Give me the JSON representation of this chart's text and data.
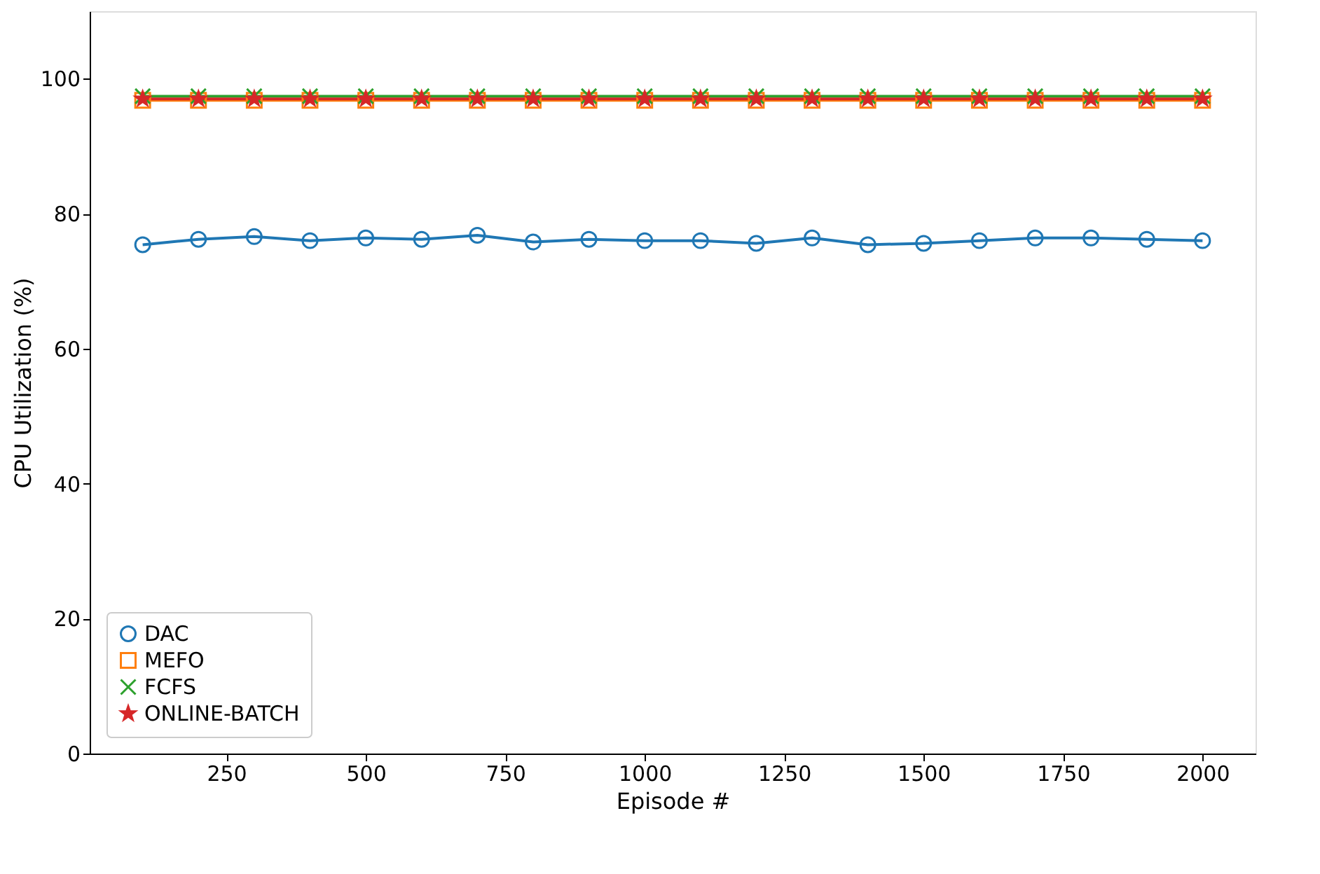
{
  "chart_data": {
    "type": "line",
    "xlabel": "Episode #",
    "ylabel": "CPU Utilization (%)",
    "x": [
      100,
      200,
      300,
      400,
      500,
      600,
      700,
      800,
      900,
      1000,
      1100,
      1200,
      1300,
      1400,
      1500,
      1600,
      1700,
      1800,
      1900,
      2000
    ],
    "series": [
      {
        "name": "DAC",
        "color": "#1f77b4",
        "marker": "circle",
        "values": [
          75.4,
          76.2,
          76.6,
          76.0,
          76.4,
          76.2,
          76.8,
          75.8,
          76.2,
          76.0,
          76.0,
          75.6,
          76.4,
          75.4,
          75.6,
          76.0,
          76.4,
          76.4,
          76.2,
          76.0
        ]
      },
      {
        "name": "MEFO",
        "color": "#ff7f0e",
        "marker": "square",
        "values": [
          96.8,
          96.8,
          96.8,
          96.8,
          96.8,
          96.8,
          96.8,
          96.8,
          96.8,
          96.8,
          96.8,
          96.8,
          96.8,
          96.8,
          96.8,
          96.8,
          96.8,
          96.8,
          96.8,
          96.8
        ]
      },
      {
        "name": "FCFS",
        "color": "#2ca02c",
        "marker": "cross",
        "values": [
          97.4,
          97.4,
          97.4,
          97.4,
          97.4,
          97.4,
          97.4,
          97.4,
          97.4,
          97.4,
          97.4,
          97.4,
          97.4,
          97.4,
          97.4,
          97.4,
          97.4,
          97.4,
          97.4,
          97.4
        ]
      },
      {
        "name": "ONLINE-BATCH",
        "color": "#d62728",
        "marker": "star",
        "values": [
          97.0,
          97.0,
          97.0,
          97.0,
          97.0,
          97.0,
          97.0,
          97.0,
          97.0,
          97.0,
          97.0,
          97.0,
          97.0,
          97.0,
          97.0,
          97.0,
          97.0,
          97.0,
          97.0,
          97.0
        ]
      }
    ],
    "xlim": [
      5,
      2095
    ],
    "xticks": [
      250,
      500,
      750,
      1000,
      1250,
      1500,
      1750,
      2000
    ],
    "ylim": [
      0,
      110
    ],
    "yticks": [
      0,
      20,
      40,
      60,
      80,
      100
    ],
    "grid": false,
    "legend": "bottom left",
    "line_style": "solid"
  }
}
